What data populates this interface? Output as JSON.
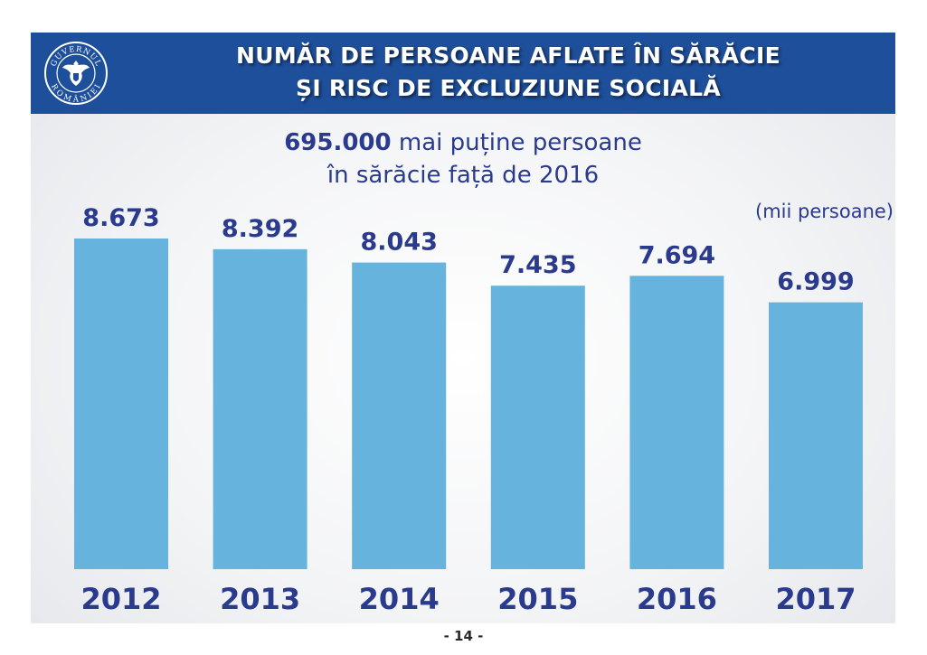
{
  "header": {
    "title_line1": "NUMĂR DE PERSOANE AFLATE ÎN SĂRĂCIE",
    "title_line2": "ȘI RISC DE EXCLUZIUNE SOCIALĂ",
    "emblem_text_top": "GUVERNUL",
    "emblem_text_bottom": "ROMÂNIEI"
  },
  "subtitle": {
    "highlight": "695.000",
    "line1_rest": " mai puține persoane",
    "line2": "în sărăcie față de 2016"
  },
  "unit_label": "(mii persoane)",
  "page_number": "- 14 -",
  "colors": {
    "banner": "#1e4f9b",
    "bar": "#66b3dd",
    "text": "#2a3a8c"
  },
  "chart_data": {
    "type": "bar",
    "title": "NUMĂR DE PERSOANE AFLATE ÎN SĂRĂCIE ȘI RISC DE EXCLUZIUNE SOCIALĂ",
    "categories": [
      "2012",
      "2013",
      "2014",
      "2015",
      "2016",
      "2017"
    ],
    "values": [
      8673,
      8392,
      8043,
      7435,
      7694,
      6999
    ],
    "value_labels": [
      "8.673",
      "8.392",
      "8.043",
      "7.435",
      "7.694",
      "6.999"
    ],
    "unit": "(mii persoane)",
    "ylim": [
      0,
      8673
    ],
    "grid": false,
    "legend": "none"
  }
}
